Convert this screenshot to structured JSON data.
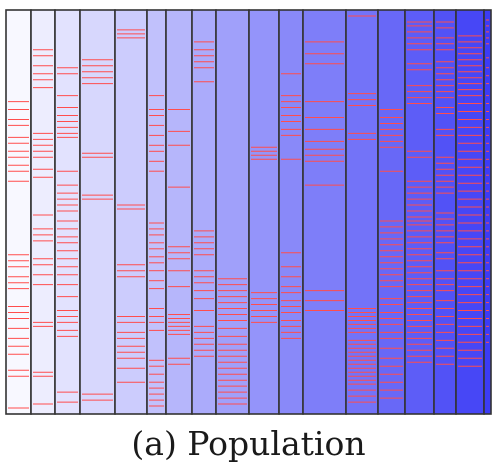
{
  "figure": {
    "caption": "(a) Population",
    "colors": {
      "frame": "#333333",
      "mark": "#ff4d4d",
      "first_column": "#f8f8ff",
      "last_column": "#3c3cf5"
    }
  },
  "chart_data": {
    "type": "heatmap",
    "columns": [
      {
        "marks": [
          0.22,
          0.24,
          0.265,
          0.28,
          0.31,
          0.325,
          0.345,
          0.36,
          0.38,
          0.395,
          0.42,
          0.605,
          0.62,
          0.635,
          0.66,
          0.675,
          0.69,
          0.735,
          0.75,
          0.765,
          0.79,
          0.815,
          0.835,
          0.855,
          0.895,
          0.91,
          0.99
        ]
      },
      {
        "marks": [
          0.09,
          0.105,
          0.13,
          0.15,
          0.165,
          0.185,
          0.3,
          0.315,
          0.33,
          0.345,
          0.36,
          0.39,
          0.41,
          0.505,
          0.54,
          0.555,
          0.57,
          0.615,
          0.63,
          0.655,
          0.68,
          0.775,
          0.785,
          0.9,
          0.91,
          0.98
        ]
      },
      {
        "marks": [
          0.135,
          0.15,
          0.205,
          0.235,
          0.255,
          0.27,
          0.285,
          0.3,
          0.31,
          0.395,
          0.43,
          0.45,
          0.465,
          0.48,
          0.495,
          0.52,
          0.54,
          0.56,
          0.575,
          0.595,
          0.615,
          0.635,
          0.655,
          0.68,
          0.71,
          0.745,
          0.76,
          0.775,
          0.795,
          0.81,
          0.95,
          0.975
        ]
      },
      {
        "marks": [
          0.115,
          0.13,
          0.145,
          0.16,
          0.175,
          0.35,
          0.36,
          0.455,
          0.465,
          0.955,
          0.97
        ]
      },
      {
        "marks": [
          0.04,
          0.05,
          0.06,
          0.48,
          0.49,
          0.63,
          0.645,
          0.66,
          0.76,
          0.775,
          0.8,
          0.815,
          0.835,
          0.85,
          0.865,
          0.89,
          0.925
        ]
      },
      {
        "marks": [
          0.205,
          0.24,
          0.255,
          0.28,
          0.305,
          0.33,
          0.345,
          0.37,
          0.395,
          0.525,
          0.54,
          0.555,
          0.575,
          0.59,
          0.61,
          0.625,
          0.645,
          0.67,
          0.69,
          0.74,
          0.76,
          0.775,
          0.795,
          0.87,
          0.885,
          0.905,
          0.925,
          0.94,
          0.955,
          0.97,
          0.985
        ]
      },
      {
        "marks": [
          0.24,
          0.295,
          0.33,
          0.435,
          0.585,
          0.6,
          0.615,
          0.645,
          0.685,
          0.755,
          0.765,
          0.775,
          0.785,
          0.795,
          0.805,
          0.865,
          0.88
        ]
      },
      {
        "marks": [
          0.07,
          0.09,
          0.105,
          0.12,
          0.135,
          0.17,
          0.545,
          0.56,
          0.575,
          0.59,
          0.605,
          0.645,
          0.66,
          0.675,
          0.695,
          0.715,
          0.745,
          0.785,
          0.8,
          0.815,
          0.83,
          0.845,
          0.86
        ]
      },
      {
        "marks": [
          0.665,
          0.68,
          0.695,
          0.71,
          0.725,
          0.74,
          0.755,
          0.77,
          0.79,
          0.81,
          0.83,
          0.845,
          0.86,
          0.875,
          0.89,
          0.905,
          0.92,
          0.935,
          0.95,
          0.965,
          0.98
        ]
      },
      {
        "marks": [
          0.335,
          0.345,
          0.355,
          0.365,
          0.7,
          0.715,
          0.73,
          0.745,
          0.76,
          0.775
        ]
      },
      {
        "marks": [
          0.15,
          0.205,
          0.22,
          0.235,
          0.255,
          0.27,
          0.29,
          0.305,
          0.365,
          0.6,
          0.635,
          0.66,
          0.685,
          0.7,
          0.72,
          0.735,
          0.75,
          0.77,
          0.785,
          0.8,
          0.815
        ]
      },
      {
        "marks": [
          0.07,
          0.1,
          0.125,
          0.22,
          0.26,
          0.29,
          0.32,
          0.34,
          0.355,
          0.37,
          0.43,
          0.695,
          0.72,
          0.745
        ]
      },
      {
        "marks": [
          0.005,
          0.2,
          0.215,
          0.23,
          0.3,
          0.315,
          0.74,
          0.75,
          0.76,
          0.77,
          0.78,
          0.79,
          0.8,
          0.82,
          0.83,
          0.84,
          0.85,
          0.86,
          0.87,
          0.88,
          0.89,
          0.9,
          0.91,
          0.92,
          0.93,
          0.945,
          0.96,
          0.975
        ]
      },
      {
        "marks": [
          0.24,
          0.26,
          0.275,
          0.29,
          0.305,
          0.32,
          0.335,
          0.395,
          0.52,
          0.535,
          0.55,
          0.565,
          0.58,
          0.595,
          0.61,
          0.625,
          0.64,
          0.655,
          0.67,
          0.685,
          0.715,
          0.73,
          0.75,
          0.765,
          0.78,
          0.8,
          0.815,
          0.84,
          0.865,
          0.885,
          0.905,
          0.925,
          0.945,
          0.965
        ]
      },
      {
        "marks": [
          0.02,
          0.03,
          0.045,
          0.06,
          0.075,
          0.09,
          0.125,
          0.14,
          0.18,
          0.195,
          0.21,
          0.225,
          0.345,
          0.36,
          0.42,
          0.435,
          0.45,
          0.465,
          0.48,
          0.495,
          0.51,
          0.52,
          0.53,
          0.545,
          0.56,
          0.575,
          0.59,
          0.605,
          0.62,
          0.635,
          0.65,
          0.665,
          0.68,
          0.695,
          0.71,
          0.725,
          0.74,
          0.755,
          0.77,
          0.785,
          0.8,
          0.815,
          0.83,
          0.845,
          0.86,
          0.875
        ]
      },
      {
        "marks": [
          0.02,
          0.035,
          0.06,
          0.075,
          0.09,
          0.12,
          0.135,
          0.15,
          0.165,
          0.18,
          0.195,
          0.21,
          0.235,
          0.25,
          0.29,
          0.305,
          0.36,
          0.375,
          0.39,
          0.405,
          0.42,
          0.435,
          0.45,
          0.5,
          0.515,
          0.53,
          0.545,
          0.56,
          0.575,
          0.6,
          0.615,
          0.645,
          0.665,
          0.68,
          0.695,
          0.72,
          0.74,
          0.76,
          0.78,
          0.8,
          0.82,
          0.84,
          0.86,
          0.88
        ]
      },
      {
        "marks": [
          0.055,
          0.07,
          0.085,
          0.1,
          0.115,
          0.13,
          0.145,
          0.16,
          0.175,
          0.19,
          0.205,
          0.225,
          0.245,
          0.265,
          0.285,
          0.305,
          0.325,
          0.345,
          0.365,
          0.385,
          0.405,
          0.425,
          0.445,
          0.465,
          0.485,
          0.505,
          0.525,
          0.545,
          0.565,
          0.585,
          0.605,
          0.625,
          0.645,
          0.665,
          0.685,
          0.705,
          0.725,
          0.745,
          0.765,
          0.785,
          0.805,
          0.825,
          0.845,
          0.865,
          0.885
        ]
      },
      {
        "marks": [
          0.015,
          0.03,
          0.045,
          0.06,
          0.075,
          0.11,
          0.135,
          0.155,
          0.175,
          0.205,
          0.225,
          0.245,
          0.265,
          0.285,
          0.305,
          0.325,
          0.345,
          0.365,
          0.385,
          0.405,
          0.425,
          0.445,
          0.465,
          0.485,
          0.505,
          0.525,
          0.545,
          0.565,
          0.585,
          0.605,
          0.625,
          0.645,
          0.665,
          0.685,
          0.705,
          0.725,
          0.745,
          0.765,
          0.785,
          0.805,
          0.825
        ]
      },
      {
        "marks": [
          0.01,
          0.025,
          0.04,
          0.055,
          0.07,
          0.085,
          0.1,
          0.12,
          0.14,
          0.16,
          0.18,
          0.2,
          0.22,
          0.24,
          0.26,
          0.28,
          0.3,
          0.32,
          0.34,
          0.36,
          0.38,
          0.4,
          0.42,
          0.44,
          0.46,
          0.48,
          0.5,
          0.52,
          0.54,
          0.56,
          0.58,
          0.6,
          0.62,
          0.64,
          0.66,
          0.68,
          0.7,
          0.72,
          0.74,
          0.76,
          0.78,
          0.8,
          0.82,
          0.84,
          0.86
        ]
      }
    ]
  }
}
